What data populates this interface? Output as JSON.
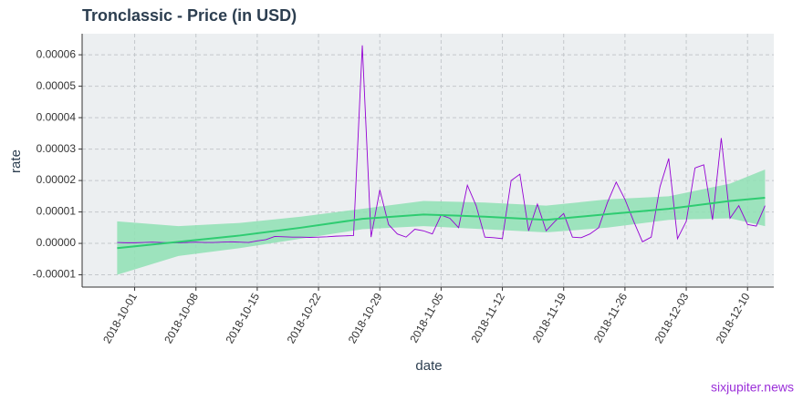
{
  "chart_data": {
    "type": "line",
    "title": "Tronclassic - Price (in USD)",
    "xlabel": "date",
    "ylabel": "rate",
    "watermark": "sixjupiter.news",
    "x": [
      "2018-09-29",
      "2018-09-30",
      "2018-10-01",
      "2018-10-02",
      "2018-10-03",
      "2018-10-04",
      "2018-10-05",
      "2018-10-06",
      "2018-10-07",
      "2018-10-08",
      "2018-10-09",
      "2018-10-10",
      "2018-10-11",
      "2018-10-12",
      "2018-10-13",
      "2018-10-14",
      "2018-10-15",
      "2018-10-16",
      "2018-10-17",
      "2018-10-18",
      "2018-10-19",
      "2018-10-20",
      "2018-10-21",
      "2018-10-22",
      "2018-10-23",
      "2018-10-24",
      "2018-10-25",
      "2018-10-26",
      "2018-10-27",
      "2018-10-28",
      "2018-10-29",
      "2018-10-30",
      "2018-10-31",
      "2018-11-01",
      "2018-11-02",
      "2018-11-03",
      "2018-11-04",
      "2018-11-05",
      "2018-11-06",
      "2018-11-07",
      "2018-11-08",
      "2018-11-09",
      "2018-11-10",
      "2018-11-11",
      "2018-11-12",
      "2018-11-13",
      "2018-11-14",
      "2018-11-15",
      "2018-11-16",
      "2018-11-17",
      "2018-11-18",
      "2018-11-19",
      "2018-11-20",
      "2018-11-21",
      "2018-11-22",
      "2018-11-23",
      "2018-11-24",
      "2018-11-25",
      "2018-11-26",
      "2018-11-27",
      "2018-11-28",
      "2018-11-29",
      "2018-11-30",
      "2018-12-01",
      "2018-12-02",
      "2018-12-03",
      "2018-12-04",
      "2018-12-05",
      "2018-12-06",
      "2018-12-07",
      "2018-12-08",
      "2018-12-09",
      "2018-12-10",
      "2018-12-11",
      "2018-12-12"
    ],
    "series": [
      {
        "color": "#9400d3",
        "values": [
          3e-07,
          2e-07,
          2e-07,
          3e-07,
          4e-07,
          3e-07,
          2e-07,
          2e-07,
          3e-07,
          4e-07,
          3e-07,
          3e-07,
          4e-07,
          5e-07,
          4e-07,
          3e-07,
          8e-07,
          1.2e-06,
          2.2e-06,
          2.1e-06,
          2e-06,
          2e-06,
          1.9e-06,
          2e-06,
          2.1e-06,
          2.3e-06,
          2.4e-06,
          2.5e-06,
          6.3e-05,
          2e-06,
          1.7e-05,
          6e-06,
          3e-06,
          2e-06,
          4.5e-06,
          4e-06,
          3e-06,
          9e-06,
          8e-06,
          5e-06,
          1.85e-05,
          1.2e-05,
          2e-06,
          1.8e-06,
          1.5e-06,
          2e-05,
          2.2e-05,
          4e-06,
          1.25e-05,
          4e-06,
          7e-06,
          9.5e-06,
          2e-06,
          1.8e-06,
          3e-06,
          5e-06,
          1.3e-05,
          1.95e-05,
          1.4e-05,
          7e-06,
          5e-07,
          2e-06,
          1.8e-05,
          2.7e-05,
          1.5e-06,
          7e-06,
          2.4e-05,
          2.5e-05,
          7.5e-06,
          3.35e-05,
          8e-06,
          1.2e-05,
          6e-06,
          5.5e-06,
          1.2e-05
        ]
      }
    ],
    "smooth": {
      "color": "#2ecc71",
      "band_color": "#8fe0b4",
      "x": [
        "2018-09-29",
        "2018-10-06",
        "2018-10-13",
        "2018-10-20",
        "2018-10-27",
        "2018-11-03",
        "2018-11-10",
        "2018-11-17",
        "2018-11-24",
        "2018-12-01",
        "2018-12-08",
        "2018-12-12"
      ],
      "values": [
        -1.5e-06,
        5e-07,
        2.5e-06,
        5e-06,
        7.8e-06,
        9.2e-06,
        8.5e-06,
        7.5e-06,
        9.3e-06,
        1.1e-05,
        1.35e-05,
        1.45e-05
      ],
      "lower": [
        -1e-05,
        -4e-06,
        -1.5e-06,
        1.5e-06,
        4.5e-06,
        5.5e-06,
        4.5e-06,
        3.5e-06,
        5e-06,
        7.5e-06,
        8e-06,
        5.5e-06
      ],
      "upper": [
        7e-06,
        5.5e-06,
        6.5e-06,
        8.5e-06,
        1.1e-05,
        1.35e-05,
        1.3e-05,
        1.2e-05,
        1.4e-05,
        1.5e-05,
        1.9e-05,
        2.35e-05
      ]
    },
    "xlim": [
      "2018-09-25",
      "2018-12-13"
    ],
    "xticks": [
      "2018-10-01",
      "2018-10-08",
      "2018-10-15",
      "2018-10-22",
      "2018-10-29",
      "2018-11-05",
      "2018-11-12",
      "2018-11-19",
      "2018-11-26",
      "2018-12-03",
      "2018-12-10"
    ],
    "ylim": [
      -1.39e-05,
      6.67e-05
    ],
    "yticks": [
      -1e-05,
      {
        "value": 0,
        "label": "0.00000"
      },
      1e-05,
      2e-05,
      3e-05,
      4e-05,
      5e-05,
      6e-05
    ],
    "grid": true
  }
}
